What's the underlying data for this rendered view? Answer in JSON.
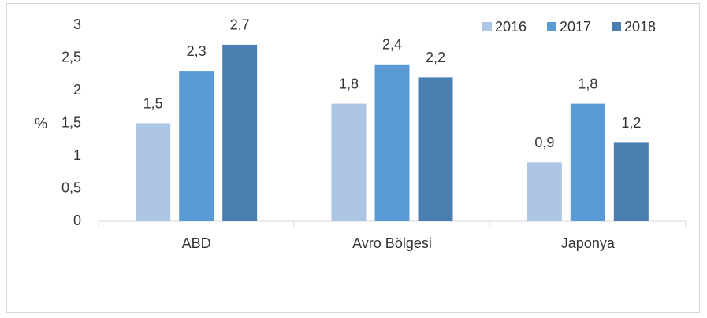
{
  "chart_data": {
    "type": "bar",
    "y_label": "%",
    "categories": [
      "ABD",
      "Avro Bölgesi",
      "Japonya"
    ],
    "series": [
      {
        "name": "2016",
        "color": "#adc6e5",
        "values": [
          1.5,
          1.8,
          0.9
        ],
        "value_labels": [
          "1,5",
          "1,8",
          "0,9"
        ]
      },
      {
        "name": "2017",
        "color": "#5b9bd5",
        "values": [
          2.3,
          2.4,
          1.8
        ],
        "value_labels": [
          "2,3",
          "2,4",
          "1,8"
        ]
      },
      {
        "name": "2018",
        "color": "#4a7eb0",
        "values": [
          2.7,
          2.2,
          1.2
        ],
        "value_labels": [
          "2,7",
          "2,2",
          "1,2"
        ]
      }
    ],
    "ylim": [
      0,
      3
    ],
    "yticks": [
      0,
      {
        "value": 0.5,
        "label": "0,5"
      },
      1,
      {
        "value": 1.5,
        "label": "1,5"
      },
      2,
      {
        "value": 2.5,
        "label": "2,5"
      },
      3
    ],
    "grid": false,
    "legend": "top-right"
  }
}
